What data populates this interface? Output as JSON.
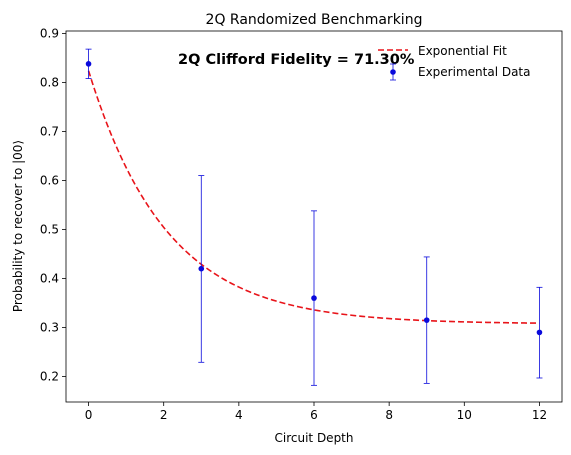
{
  "chart_data": {
    "type": "scatter",
    "title": "2Q Randomized Benchmarking",
    "xlabel": "Circuit Depth",
    "ylabel": "Probability to recover to |00⟩",
    "xlim": [
      -0.6,
      12.6
    ],
    "ylim": [
      0.148,
      0.905
    ],
    "xticks": [
      0,
      2,
      4,
      6,
      8,
      10,
      12
    ],
    "yticks": [
      0.2,
      0.3,
      0.4,
      0.5,
      0.6,
      0.7,
      0.8,
      0.9
    ],
    "xtick_labels": [
      "0",
      "2",
      "4",
      "6",
      "8",
      "10",
      "12"
    ],
    "ytick_labels": [
      "0.2",
      "0.3",
      "0.4",
      "0.5",
      "0.6",
      "0.7",
      "0.8",
      "0.9"
    ],
    "grid": false,
    "legend_position": "top-right",
    "annotation": "2Q Clifford Fidelity = 71.30%",
    "series": [
      {
        "name": "Exponential Fit",
        "kind": "line",
        "style": "dashed",
        "color": "#e8141a",
        "fit": {
          "A": 0.5167,
          "p": 0.6176,
          "B": 0.3073,
          "x_start": 0.0,
          "x_end": 12.0
        }
      },
      {
        "name": "Experimental Data",
        "kind": "errorbar",
        "color": "#0a0adc",
        "x": [
          0,
          3,
          6,
          9,
          12
        ],
        "y": [
          0.838,
          0.42,
          0.36,
          0.315,
          0.29
        ],
        "yerr_low": [
          0.808,
          0.229,
          0.182,
          0.186,
          0.197
        ],
        "yerr_high": [
          0.868,
          0.61,
          0.538,
          0.444,
          0.382
        ]
      }
    ]
  }
}
